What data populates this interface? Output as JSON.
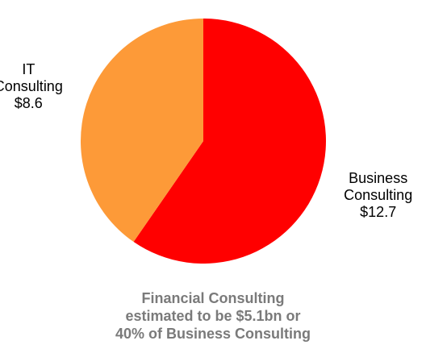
{
  "chart_data": {
    "type": "pie",
    "categories": [
      "Business Consulting",
      "IT Consulting"
    ],
    "values": [
      12.7,
      8.6
    ],
    "value_labels": [
      "$12.7",
      "$8.6"
    ],
    "colors": [
      "#ff0000",
      "#fd9a38"
    ],
    "annotation": [
      "Financial Consulting",
      "estimated to be $5.1bn or",
      "40% of Business Consulting"
    ]
  }
}
